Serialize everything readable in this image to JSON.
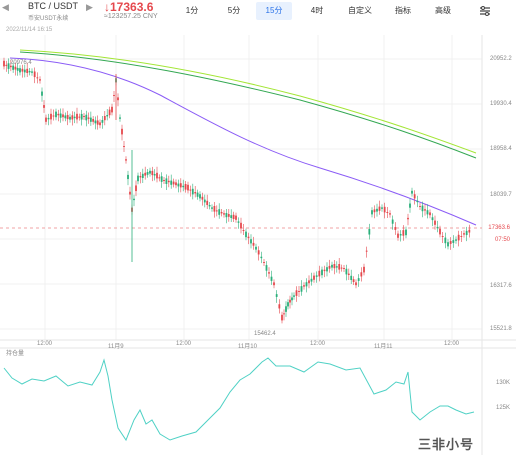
{
  "header": {
    "pair": "BTC / USDT",
    "sub": "币安USDT永续",
    "price": "↓17363.6",
    "price_cny": "≈123257.25 CNY",
    "timeframes": [
      "1分",
      "5分",
      "15分",
      "4时",
      "自定义",
      "指标",
      "高级"
    ],
    "active_tf": "15分"
  },
  "chart": {
    "datetime": "2022/11/14 16:15",
    "right_axis": [
      "20952.2",
      "19930.4",
      "18958.4",
      "18039.7",
      "17363.6",
      "07:50",
      "16317.6",
      "15521.8"
    ],
    "x_labels": [
      "12:00",
      "11月9",
      "12:00",
      "11月10",
      "12:00",
      "11月11",
      "12:00"
    ],
    "low_label": "15462.4",
    "high_label": "20976.4"
  },
  "volume": {
    "label": "持仓量",
    "right_axis": [
      "130K",
      "125K"
    ]
  },
  "watermark": "三非小号",
  "colors": {
    "up": "#2aaf7a",
    "down": "#e5484d",
    "ma1": "#8b5cf6",
    "ma2": "#34a853",
    "ma3": "#a3e635"
  }
}
